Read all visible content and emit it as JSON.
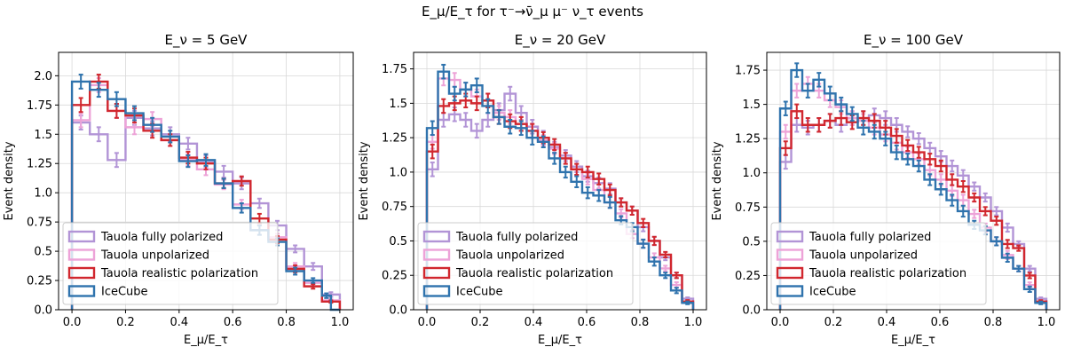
{
  "suptitle": "E_μ/E_τ for τ⁻→ν̄_μ μ⁻ ν_τ events",
  "colors": {
    "fully_polarized": "#b294d6",
    "unpolarized": "#eda3d8",
    "realistic": "#d1272e",
    "icecube": "#2f73ad"
  },
  "chart_data": [
    {
      "type": "histogram",
      "title": "E_ν = 5 GeV",
      "xlabel": "E_μ/E_τ",
      "ylabel": "Event density",
      "xlim": [
        -0.05,
        1.05
      ],
      "ylim": [
        0,
        2.2
      ],
      "xticks": [
        0.0,
        0.2,
        0.4,
        0.6,
        0.8,
        1.0
      ],
      "yticks": [
        0.0,
        0.25,
        0.5,
        0.75,
        1.0,
        1.25,
        1.5,
        1.75,
        2.0
      ],
      "grid": true,
      "legend_position": "lower-left",
      "bin_edges": [
        0.0,
        0.0667,
        0.1333,
        0.2,
        0.2667,
        0.3333,
        0.4,
        0.4667,
        0.5333,
        0.6,
        0.6667,
        0.7333,
        0.8,
        0.8667,
        0.9333,
        1.0
      ],
      "series": [
        {
          "name": "Tauola fully polarized",
          "key": "fully_polarized",
          "values": [
            1.6,
            1.5,
            1.28,
            1.64,
            1.55,
            1.5,
            1.42,
            1.27,
            1.18,
            1.08,
            0.91,
            0.72,
            0.52,
            0.37,
            0.13
          ],
          "errors": [
            0.06,
            0.06,
            0.06,
            0.06,
            0.06,
            0.06,
            0.05,
            0.05,
            0.05,
            0.05,
            0.04,
            0.04,
            0.03,
            0.03,
            0.02
          ]
        },
        {
          "name": "Tauola unpolarized",
          "key": "unpolarized",
          "values": [
            1.62,
            1.92,
            1.7,
            1.56,
            1.63,
            1.45,
            1.28,
            1.2,
            1.07,
            0.9,
            0.68,
            0.62,
            0.37,
            0.23,
            0.08
          ],
          "errors": [
            0.06,
            0.06,
            0.06,
            0.06,
            0.06,
            0.05,
            0.05,
            0.05,
            0.04,
            0.04,
            0.04,
            0.03,
            0.03,
            0.02,
            0.01
          ]
        },
        {
          "name": "Tauola realistic polarization",
          "key": "realistic",
          "values": [
            1.75,
            1.95,
            1.7,
            1.66,
            1.53,
            1.45,
            1.3,
            1.25,
            1.08,
            1.1,
            0.78,
            0.6,
            0.35,
            0.2,
            0.07
          ],
          "errors": [
            0.06,
            0.06,
            0.06,
            0.06,
            0.06,
            0.05,
            0.05,
            0.05,
            0.04,
            0.04,
            0.04,
            0.03,
            0.03,
            0.02,
            0.01
          ]
        },
        {
          "name": "IceCube",
          "key": "icecube",
          "values": [
            1.95,
            1.88,
            1.8,
            1.68,
            1.58,
            1.48,
            1.27,
            1.28,
            1.08,
            0.87,
            0.68,
            0.58,
            0.33,
            0.25,
            0.12,
            0.0
          ],
          "errors": [
            0.06,
            0.06,
            0.06,
            0.06,
            0.06,
            0.05,
            0.05,
            0.05,
            0.04,
            0.04,
            0.04,
            0.03,
            0.03,
            0.02,
            0.02,
            0.0
          ],
          "bin_edges": [
            0.0,
            0.0667,
            0.1333,
            0.2,
            0.2667,
            0.3333,
            0.4,
            0.4667,
            0.5333,
            0.6,
            0.6667,
            0.7333,
            0.8,
            0.8667,
            0.9333,
            0.9667,
            1.0
          ]
        }
      ]
    },
    {
      "type": "histogram",
      "title": "E_ν = 20 GeV",
      "xlabel": "E_μ/E_τ",
      "ylabel": "Event density",
      "xlim": [
        -0.05,
        1.05
      ],
      "ylim": [
        0,
        1.87
      ],
      "xticks": [
        0.0,
        0.2,
        0.4,
        0.6,
        0.8,
        1.0
      ],
      "yticks": [
        0.0,
        0.25,
        0.5,
        0.75,
        1.0,
        1.25,
        1.5,
        1.75
      ],
      "grid": true,
      "legend_position": "lower-left",
      "bin_edges": [
        0.0,
        0.0417,
        0.0833,
        0.125,
        0.1667,
        0.2083,
        0.25,
        0.2917,
        0.3333,
        0.375,
        0.4167,
        0.4583,
        0.5,
        0.5417,
        0.5833,
        0.625,
        0.6667,
        0.7083,
        0.75,
        0.7917,
        0.8333,
        0.875,
        0.9167,
        0.9583,
        1.0
      ],
      "series": [
        {
          "name": "Tauola fully polarized",
          "key": "fully_polarized",
          "values": [
            1.02,
            1.38,
            1.42,
            1.38,
            1.3,
            1.38,
            1.45,
            1.57,
            1.43,
            1.33,
            1.25,
            1.18,
            1.12,
            1.04,
            0.97,
            0.92,
            0.88,
            0.78,
            0.72,
            0.6,
            0.5,
            0.38,
            0.25,
            0.08
          ],
          "errors": [
            0.05,
            0.05,
            0.05,
            0.05,
            0.05,
            0.05,
            0.05,
            0.05,
            0.05,
            0.05,
            0.05,
            0.04,
            0.04,
            0.04,
            0.04,
            0.04,
            0.04,
            0.03,
            0.03,
            0.03,
            0.03,
            0.02,
            0.02,
            0.01
          ]
        },
        {
          "name": "Tauola unpolarized",
          "key": "unpolarized",
          "values": [
            1.22,
            1.68,
            1.67,
            1.6,
            1.55,
            1.52,
            1.43,
            1.4,
            1.35,
            1.3,
            1.23,
            1.17,
            1.1,
            1.02,
            0.95,
            0.87,
            0.78,
            0.7,
            0.55,
            0.48,
            0.38,
            0.3,
            0.18,
            0.06
          ],
          "errors": [
            0.05,
            0.05,
            0.05,
            0.05,
            0.05,
            0.05,
            0.05,
            0.05,
            0.05,
            0.05,
            0.04,
            0.04,
            0.04,
            0.04,
            0.04,
            0.04,
            0.04,
            0.03,
            0.03,
            0.03,
            0.03,
            0.02,
            0.02,
            0.01
          ]
        },
        {
          "name": "Tauola realistic polarization",
          "key": "realistic",
          "values": [
            1.15,
            1.48,
            1.5,
            1.52,
            1.5,
            1.52,
            1.4,
            1.37,
            1.35,
            1.3,
            1.25,
            1.2,
            1.1,
            1.02,
            1.0,
            0.95,
            0.87,
            0.78,
            0.72,
            0.63,
            0.5,
            0.4,
            0.25,
            0.06
          ],
          "errors": [
            0.05,
            0.05,
            0.05,
            0.05,
            0.05,
            0.05,
            0.05,
            0.05,
            0.05,
            0.05,
            0.04,
            0.04,
            0.04,
            0.04,
            0.04,
            0.04,
            0.04,
            0.03,
            0.03,
            0.03,
            0.03,
            0.02,
            0.02,
            0.01
          ]
        },
        {
          "name": "IceCube",
          "key": "icecube",
          "values": [
            1.32,
            1.73,
            1.57,
            1.6,
            1.63,
            1.48,
            1.4,
            1.33,
            1.32,
            1.25,
            1.22,
            1.1,
            1.0,
            0.93,
            0.85,
            0.83,
            0.78,
            0.65,
            0.6,
            0.48,
            0.35,
            0.25,
            0.14,
            0.05
          ],
          "errors": [
            0.05,
            0.05,
            0.05,
            0.05,
            0.05,
            0.05,
            0.05,
            0.05,
            0.05,
            0.05,
            0.04,
            0.04,
            0.04,
            0.04,
            0.04,
            0.04,
            0.04,
            0.03,
            0.03,
            0.03,
            0.03,
            0.02,
            0.02,
            0.01
          ]
        }
      ]
    },
    {
      "type": "histogram",
      "title": "E_ν = 100 GeV",
      "xlabel": "E_μ/E_τ",
      "ylabel": "Event density",
      "xlim": [
        -0.05,
        1.05
      ],
      "ylim": [
        0,
        1.88
      ],
      "xticks": [
        0.0,
        0.2,
        0.4,
        0.6,
        0.8,
        1.0
      ],
      "yticks": [
        0.0,
        0.25,
        0.5,
        0.75,
        1.0,
        1.25,
        1.5,
        1.75
      ],
      "grid": true,
      "legend_position": "lower-left",
      "bin_edges": [
        0.0,
        0.0417,
        0.0833,
        0.125,
        0.1667,
        0.2083,
        0.25,
        0.2917,
        0.3333,
        0.375,
        0.4167,
        0.4583,
        0.5,
        0.5417,
        0.5833,
        0.625,
        0.6667,
        0.7083,
        0.75,
        0.7917,
        0.8333,
        0.875,
        0.9167,
        0.9583,
        1.0
      ],
      "series": [
        {
          "name": "Tauola fully polarized",
          "key": "fully_polarized",
          "values": [
            1.08,
            1.35,
            1.33,
            1.35,
            1.38,
            1.35,
            1.4,
            1.4,
            1.42,
            1.4,
            1.35,
            1.3,
            1.25,
            1.18,
            1.12,
            1.05,
            0.98,
            0.9,
            0.82,
            0.72,
            0.6,
            0.48,
            0.3,
            0.08
          ],
          "errors": [
            0.05,
            0.05,
            0.05,
            0.05,
            0.05,
            0.05,
            0.05,
            0.05,
            0.05,
            0.05,
            0.05,
            0.04,
            0.04,
            0.04,
            0.04,
            0.04,
            0.04,
            0.03,
            0.03,
            0.03,
            0.03,
            0.02,
            0.02,
            0.01
          ]
        },
        {
          "name": "Tauola unpolarized",
          "key": "unpolarized",
          "values": [
            1.3,
            1.6,
            1.65,
            1.6,
            1.53,
            1.48,
            1.4,
            1.38,
            1.33,
            1.28,
            1.22,
            1.15,
            1.1,
            1.02,
            0.95,
            0.87,
            0.8,
            0.7,
            0.6,
            0.5,
            0.4,
            0.3,
            0.18,
            0.06
          ],
          "errors": [
            0.05,
            0.05,
            0.05,
            0.05,
            0.05,
            0.05,
            0.05,
            0.05,
            0.05,
            0.05,
            0.05,
            0.04,
            0.04,
            0.04,
            0.04,
            0.04,
            0.04,
            0.03,
            0.03,
            0.03,
            0.03,
            0.02,
            0.02,
            0.01
          ]
        },
        {
          "name": "Tauola realistic polarization",
          "key": "realistic",
          "values": [
            1.18,
            1.45,
            1.35,
            1.35,
            1.38,
            1.4,
            1.37,
            1.4,
            1.38,
            1.33,
            1.27,
            1.2,
            1.15,
            1.1,
            1.05,
            0.95,
            0.9,
            0.82,
            0.72,
            0.65,
            0.48,
            0.45,
            0.25,
            0.06
          ],
          "errors": [
            0.05,
            0.05,
            0.05,
            0.05,
            0.05,
            0.05,
            0.05,
            0.05,
            0.05,
            0.05,
            0.05,
            0.04,
            0.04,
            0.04,
            0.04,
            0.04,
            0.04,
            0.03,
            0.03,
            0.03,
            0.03,
            0.02,
            0.02,
            0.01
          ]
        },
        {
          "name": "IceCube",
          "key": "icecube",
          "values": [
            1.47,
            1.75,
            1.6,
            1.68,
            1.58,
            1.5,
            1.43,
            1.33,
            1.3,
            1.25,
            1.15,
            1.1,
            1.05,
            0.95,
            0.88,
            0.8,
            0.72,
            0.62,
            0.58,
            0.5,
            0.38,
            0.3,
            0.15,
            0.05
          ],
          "errors": [
            0.05,
            0.05,
            0.05,
            0.05,
            0.05,
            0.05,
            0.05,
            0.05,
            0.05,
            0.05,
            0.05,
            0.04,
            0.04,
            0.04,
            0.04,
            0.04,
            0.04,
            0.03,
            0.03,
            0.03,
            0.03,
            0.02,
            0.02,
            0.01
          ]
        }
      ]
    }
  ]
}
